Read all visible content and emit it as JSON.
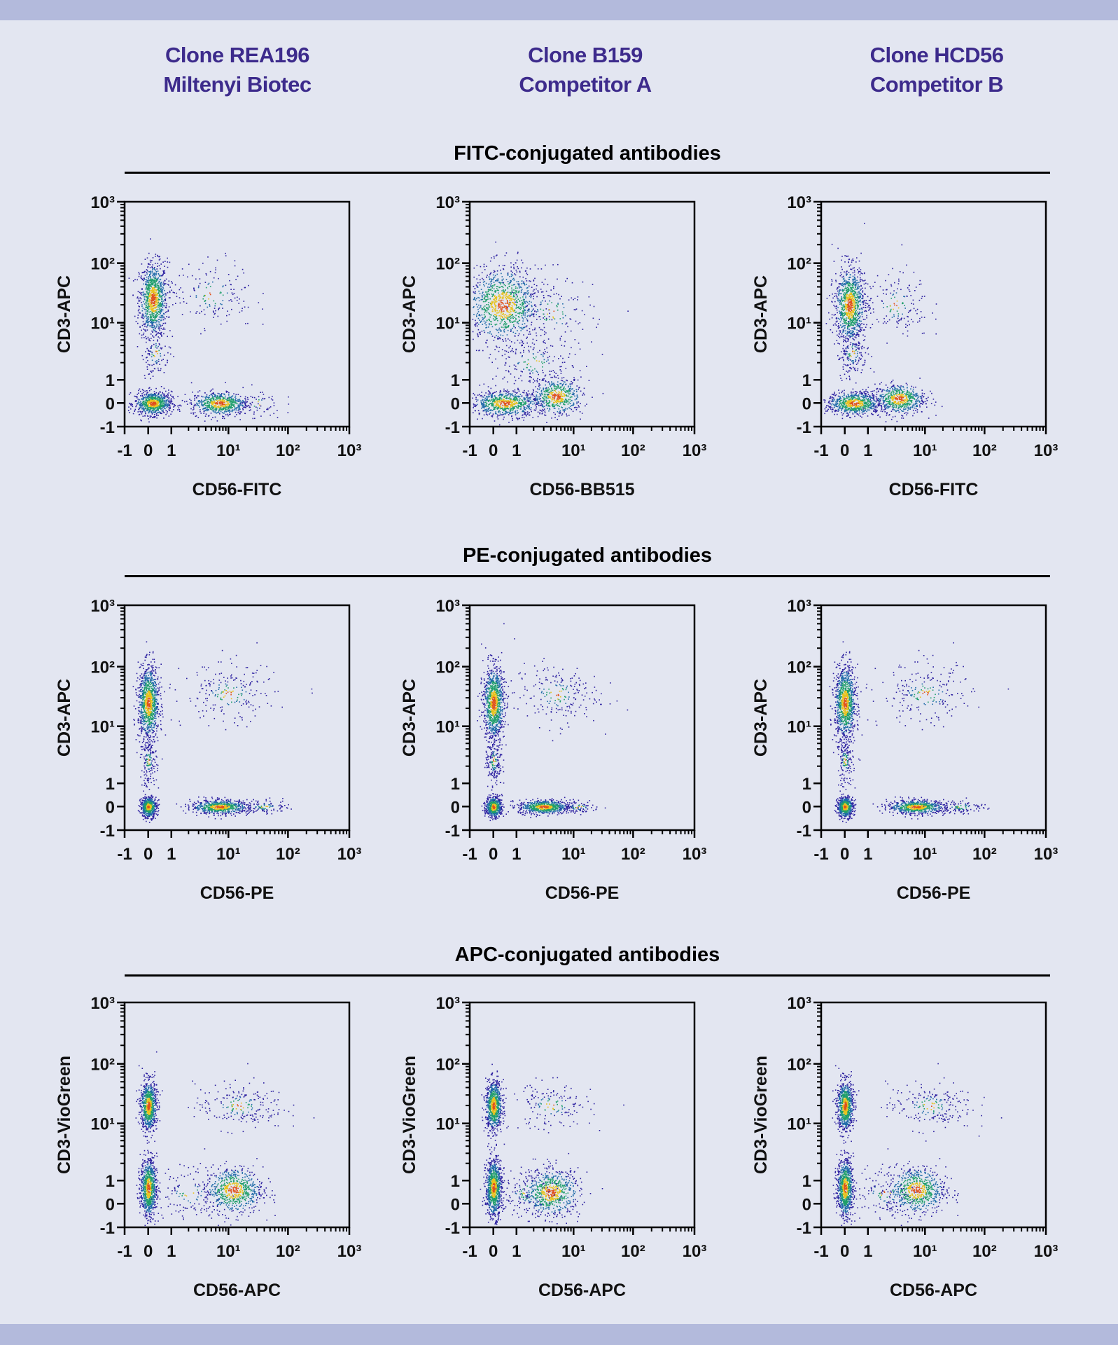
{
  "colors": {
    "background": "#e3e6f1",
    "band": "#b3badc",
    "header_text": "#3d2b8c",
    "density_low": "#2b1fa0",
    "density_mid": "#1e9e6a",
    "density_high": "#e8c21c",
    "density_peak": "#e0501a"
  },
  "columns": [
    {
      "line1": "Clone REA196",
      "line2": "Miltenyi Biotec"
    },
    {
      "line1": "Clone B159",
      "line2": "Competitor A"
    },
    {
      "line1": "Clone HCD56",
      "line2": "Competitor B"
    }
  ],
  "sections": [
    {
      "title": "FITC-conjugated antibodies"
    },
    {
      "title": "PE-conjugated antibodies"
    },
    {
      "title": "APC-conjugated antibodies"
    }
  ],
  "chart_data": [
    {
      "type": "scatter",
      "row": 0,
      "col": 0,
      "xlabel": "CD56-FITC",
      "ylabel": "CD3-APC",
      "x_scale": "biexponential",
      "y_scale": "biexponential",
      "xlim": [
        -1,
        1000
      ],
      "ylim": [
        -1,
        1000
      ],
      "x_ticks": [
        "-1",
        "0",
        "1",
        "10¹",
        "10²",
        "10³"
      ],
      "y_ticks": [
        "-1",
        "0",
        "1",
        "10¹",
        "10²",
        "10³"
      ],
      "populations": [
        {
          "x": 0.2,
          "x_range": [
            -0.4,
            0.8
          ],
          "y": 25,
          "y_range": [
            5,
            90
          ],
          "weight": 0.36
        },
        {
          "x": 0.2,
          "x_range": [
            -0.5,
            1.1
          ],
          "y": 0,
          "y_range": [
            -0.5,
            0.5
          ],
          "weight": 0.28
        },
        {
          "x": 7,
          "x_range": [
            2,
            20
          ],
          "y": 0,
          "y_range": [
            -0.5,
            0.5
          ],
          "weight": 0.24
        },
        {
          "x": 5,
          "x_range": [
            1,
            30
          ],
          "y": 30,
          "y_range": [
            6,
            90
          ],
          "weight": 0.06
        },
        {
          "x": 0.3,
          "x_range": [
            -0.3,
            0.9
          ],
          "y": 3,
          "y_range": [
            1,
            8
          ],
          "weight": 0.04
        },
        {
          "x": 30,
          "x_range": [
            10,
            70
          ],
          "y": 0,
          "y_range": [
            -0.7,
            0.6
          ],
          "weight": 0.02
        }
      ]
    },
    {
      "type": "scatter",
      "row": 0,
      "col": 1,
      "xlabel": "CD56-BB515",
      "ylabel": "CD3-APC",
      "x_scale": "biexponential",
      "y_scale": "biexponential",
      "xlim": [
        -1,
        1000
      ],
      "ylim": [
        -1,
        1000
      ],
      "x_ticks": [
        "-1",
        "0",
        "1",
        "10¹",
        "10²",
        "10³"
      ],
      "y_ticks": [
        "-1",
        "0",
        "1",
        "10¹",
        "10²",
        "10³"
      ],
      "populations": [
        {
          "x": 0.4,
          "x_range": [
            -0.9,
            3
          ],
          "y": 20,
          "y_range": [
            4,
            80
          ],
          "weight": 0.4
        },
        {
          "x": 0.5,
          "x_range": [
            -0.8,
            3
          ],
          "y": 0,
          "y_range": [
            -0.5,
            0.6
          ],
          "weight": 0.28
        },
        {
          "x": 5,
          "x_range": [
            1.5,
            12
          ],
          "y": 0.3,
          "y_range": [
            -0.4,
            1.2
          ],
          "weight": 0.2
        },
        {
          "x": 4,
          "x_range": [
            1,
            30
          ],
          "y": 15,
          "y_range": [
            3,
            70
          ],
          "weight": 0.06
        },
        {
          "x": 2,
          "x_range": [
            0,
            12
          ],
          "y": 2,
          "y_range": [
            0.5,
            5
          ],
          "weight": 0.06
        }
      ]
    },
    {
      "type": "scatter",
      "row": 0,
      "col": 2,
      "xlabel": "CD56-FITC",
      "ylabel": "CD3-APC",
      "x_scale": "biexponential",
      "y_scale": "biexponential",
      "xlim": [
        -1,
        1000
      ],
      "ylim": [
        -1,
        1000
      ],
      "x_ticks": [
        "-1",
        "0",
        "1",
        "10¹",
        "10²",
        "10³"
      ],
      "y_ticks": [
        "-1",
        "0",
        "1",
        "10¹",
        "10²",
        "10³"
      ],
      "populations": [
        {
          "x": 0.2,
          "x_range": [
            -0.4,
            0.9
          ],
          "y": 20,
          "y_range": [
            4,
            80
          ],
          "weight": 0.38
        },
        {
          "x": 0.4,
          "x_range": [
            -0.6,
            2
          ],
          "y": 0,
          "y_range": [
            -0.5,
            0.5
          ],
          "weight": 0.28
        },
        {
          "x": 3.5,
          "x_range": [
            1,
            8
          ],
          "y": 0.2,
          "y_range": [
            -0.4,
            0.9
          ],
          "weight": 0.22
        },
        {
          "x": 3,
          "x_range": [
            1,
            15
          ],
          "y": 20,
          "y_range": [
            5,
            70
          ],
          "weight": 0.06
        },
        {
          "x": 0.3,
          "x_range": [
            -0.3,
            1
          ],
          "y": 3,
          "y_range": [
            1,
            8
          ],
          "weight": 0.06
        }
      ]
    },
    {
      "type": "scatter",
      "row": 1,
      "col": 0,
      "xlabel": "CD56-PE",
      "ylabel": "CD3-APC",
      "x_scale": "biexponential",
      "y_scale": "biexponential",
      "xlim": [
        -1,
        1000
      ],
      "ylim": [
        -1,
        1000
      ],
      "x_ticks": [
        "-1",
        "0",
        "1",
        "10¹",
        "10²",
        "10³"
      ],
      "y_ticks": [
        "-1",
        "0",
        "1",
        "10¹",
        "10²",
        "10³"
      ],
      "populations": [
        {
          "x": 0,
          "x_range": [
            -0.4,
            0.5
          ],
          "y": 25,
          "y_range": [
            5,
            90
          ],
          "weight": 0.38
        },
        {
          "x": 0,
          "x_range": [
            -0.3,
            0.4
          ],
          "y": 0,
          "y_range": [
            -0.4,
            0.5
          ],
          "weight": 0.2
        },
        {
          "x": 7,
          "x_range": [
            2,
            20
          ],
          "y": 0,
          "y_range": [
            -0.3,
            0.3
          ],
          "weight": 0.24
        },
        {
          "x": 10,
          "x_range": [
            1,
            40
          ],
          "y": 35,
          "y_range": [
            8,
            90
          ],
          "weight": 0.08
        },
        {
          "x": 0,
          "x_range": [
            -0.3,
            0.4
          ],
          "y": 2.5,
          "y_range": [
            1,
            8
          ],
          "weight": 0.06
        },
        {
          "x": 40,
          "x_range": [
            15,
            100
          ],
          "y": 0,
          "y_range": [
            -0.3,
            0.3
          ],
          "weight": 0.04
        }
      ]
    },
    {
      "type": "scatter",
      "row": 1,
      "col": 1,
      "xlabel": "CD56-PE",
      "ylabel": "CD3-APC",
      "x_scale": "biexponential",
      "y_scale": "biexponential",
      "xlim": [
        -1,
        1000
      ],
      "ylim": [
        -1,
        1000
      ],
      "x_ticks": [
        "-1",
        "0",
        "1",
        "10¹",
        "10²",
        "10³"
      ],
      "y_ticks": [
        "-1",
        "0",
        "1",
        "10¹",
        "10²",
        "10³"
      ],
      "populations": [
        {
          "x": 0,
          "x_range": [
            -0.4,
            0.5
          ],
          "y": 25,
          "y_range": [
            5,
            90
          ],
          "weight": 0.38
        },
        {
          "x": 0,
          "x_range": [
            -0.3,
            0.4
          ],
          "y": 0,
          "y_range": [
            -0.4,
            0.5
          ],
          "weight": 0.2
        },
        {
          "x": 3,
          "x_range": [
            1,
            8
          ],
          "y": 0,
          "y_range": [
            -0.3,
            0.3
          ],
          "weight": 0.24
        },
        {
          "x": 5,
          "x_range": [
            1,
            30
          ],
          "y": 35,
          "y_range": [
            8,
            90
          ],
          "weight": 0.08
        },
        {
          "x": 0,
          "x_range": [
            -0.3,
            0.4
          ],
          "y": 2.5,
          "y_range": [
            1,
            8
          ],
          "weight": 0.07
        },
        {
          "x": 12,
          "x_range": [
            6,
            30
          ],
          "y": 0,
          "y_range": [
            -0.3,
            0.3
          ],
          "weight": 0.03
        }
      ]
    },
    {
      "type": "scatter",
      "row": 1,
      "col": 2,
      "xlabel": "CD56-PE",
      "ylabel": "CD3-APC",
      "x_scale": "biexponential",
      "y_scale": "biexponential",
      "xlim": [
        -1,
        1000
      ],
      "ylim": [
        -1,
        1000
      ],
      "x_ticks": [
        "-1",
        "0",
        "1",
        "10¹",
        "10²",
        "10³"
      ],
      "y_ticks": [
        "-1",
        "0",
        "1",
        "10¹",
        "10²",
        "10³"
      ],
      "populations": [
        {
          "x": 0,
          "x_range": [
            -0.4,
            0.5
          ],
          "y": 25,
          "y_range": [
            5,
            90
          ],
          "weight": 0.38
        },
        {
          "x": 0,
          "x_range": [
            -0.3,
            0.4
          ],
          "y": 0,
          "y_range": [
            -0.4,
            0.5
          ],
          "weight": 0.2
        },
        {
          "x": 7,
          "x_range": [
            2,
            20
          ],
          "y": 0,
          "y_range": [
            -0.3,
            0.3
          ],
          "weight": 0.24
        },
        {
          "x": 10,
          "x_range": [
            1,
            40
          ],
          "y": 35,
          "y_range": [
            8,
            90
          ],
          "weight": 0.08
        },
        {
          "x": 0,
          "x_range": [
            -0.3,
            0.4
          ],
          "y": 2.5,
          "y_range": [
            1,
            8
          ],
          "weight": 0.06
        },
        {
          "x": 40,
          "x_range": [
            15,
            100
          ],
          "y": 0,
          "y_range": [
            -0.3,
            0.3
          ],
          "weight": 0.04
        }
      ]
    },
    {
      "type": "scatter",
      "row": 2,
      "col": 0,
      "xlabel": "CD56-APC",
      "ylabel": "CD3-VioGreen",
      "x_scale": "biexponential",
      "y_scale": "biexponential",
      "xlim": [
        -1,
        1000
      ],
      "ylim": [
        -1,
        1000
      ],
      "x_ticks": [
        "-1",
        "0",
        "1",
        "10¹",
        "10²",
        "10³"
      ],
      "y_ticks": [
        "-1",
        "0",
        "1",
        "10¹",
        "10²",
        "10³"
      ],
      "populations": [
        {
          "x": 0,
          "x_range": [
            -0.3,
            0.4
          ],
          "y": 20,
          "y_range": [
            7,
            50
          ],
          "weight": 0.3
        },
        {
          "x": 0,
          "x_range": [
            -0.3,
            0.4
          ],
          "y": 0.7,
          "y_range": [
            -1,
            1.6
          ],
          "weight": 0.32
        },
        {
          "x": 12,
          "x_range": [
            4,
            40
          ],
          "y": 0.6,
          "y_range": [
            -0.5,
            1.6
          ],
          "weight": 0.26
        },
        {
          "x": 15,
          "x_range": [
            2,
            70
          ],
          "y": 20,
          "y_range": [
            8,
            50
          ],
          "weight": 0.08
        },
        {
          "x": 2,
          "x_range": [
            0.5,
            10
          ],
          "y": 0.5,
          "y_range": [
            -0.8,
            1.5
          ],
          "weight": 0.04
        }
      ]
    },
    {
      "type": "scatter",
      "row": 2,
      "col": 1,
      "xlabel": "CD56-APC",
      "ylabel": "CD3-VioGreen",
      "x_scale": "biexponential",
      "y_scale": "biexponential",
      "xlim": [
        -1,
        1000
      ],
      "ylim": [
        -1,
        1000
      ],
      "x_ticks": [
        "-1",
        "0",
        "1",
        "10¹",
        "10²",
        "10³"
      ],
      "y_ticks": [
        "-1",
        "0",
        "1",
        "10¹",
        "10²",
        "10³"
      ],
      "populations": [
        {
          "x": 0,
          "x_range": [
            -0.3,
            0.4
          ],
          "y": 20,
          "y_range": [
            7,
            50
          ],
          "weight": 0.3
        },
        {
          "x": 0,
          "x_range": [
            -0.3,
            0.4
          ],
          "y": 0.7,
          "y_range": [
            -1,
            1.6
          ],
          "weight": 0.34
        },
        {
          "x": 4,
          "x_range": [
            1.2,
            12
          ],
          "y": 0.5,
          "y_range": [
            -0.6,
            1.5
          ],
          "weight": 0.26
        },
        {
          "x": 4,
          "x_range": [
            1,
            25
          ],
          "y": 20,
          "y_range": [
            8,
            50
          ],
          "weight": 0.06
        },
        {
          "x": 1.5,
          "x_range": [
            0.3,
            6
          ],
          "y": 0.5,
          "y_range": [
            -0.8,
            1.5
          ],
          "weight": 0.04
        }
      ]
    },
    {
      "type": "scatter",
      "row": 2,
      "col": 2,
      "xlabel": "CD56-APC",
      "ylabel": "CD3-VioGreen",
      "x_scale": "biexponential",
      "y_scale": "biexponential",
      "xlim": [
        -1,
        1000
      ],
      "ylim": [
        -1,
        1000
      ],
      "x_ticks": [
        "-1",
        "0",
        "1",
        "10¹",
        "10²",
        "10³"
      ],
      "y_ticks": [
        "-1",
        "0",
        "1",
        "10¹",
        "10²",
        "10³"
      ],
      "populations": [
        {
          "x": 0,
          "x_range": [
            -0.3,
            0.4
          ],
          "y": 20,
          "y_range": [
            7,
            50
          ],
          "weight": 0.3
        },
        {
          "x": 0,
          "x_range": [
            -0.3,
            0.4
          ],
          "y": 0.7,
          "y_range": [
            -1,
            1.6
          ],
          "weight": 0.32
        },
        {
          "x": 7,
          "x_range": [
            2.5,
            25
          ],
          "y": 0.6,
          "y_range": [
            -0.5,
            1.6
          ],
          "weight": 0.26
        },
        {
          "x": 12,
          "x_range": [
            2,
            60
          ],
          "y": 20,
          "y_range": [
            8,
            50
          ],
          "weight": 0.08
        },
        {
          "x": 2,
          "x_range": [
            0.5,
            10
          ],
          "y": 0.5,
          "y_range": [
            -0.8,
            1.5
          ],
          "weight": 0.04
        }
      ]
    }
  ]
}
